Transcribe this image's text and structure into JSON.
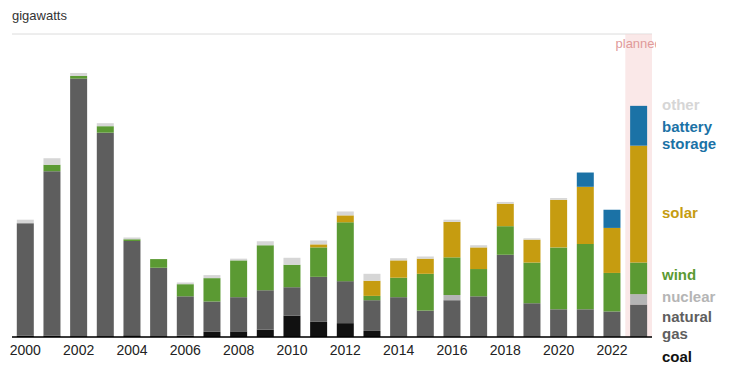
{
  "chart_data": {
    "type": "bar",
    "stacked": true,
    "y_label": "gigawatts",
    "categories": [
      "2000",
      null,
      "2002",
      null,
      "2004",
      null,
      "2006",
      null,
      "2008",
      null,
      "2010",
      null,
      "2012",
      null,
      "2014",
      null,
      "2016",
      null,
      "2018",
      null,
      "2020",
      null,
      "2022",
      null
    ],
    "series": [
      {
        "name": "coal",
        "color": "#111111",
        "values": [
          0.3,
          0.3,
          0.2,
          0.2,
          0.4,
          0.2,
          0.3,
          1.2,
          1.3,
          1.7,
          4.9,
          3.5,
          3.2,
          1.4,
          0.1,
          0,
          0,
          0,
          0,
          0,
          0,
          0,
          0,
          0
        ]
      },
      {
        "name": "natural gas",
        "color": "#5e5e5e",
        "values": [
          26,
          38,
          59.5,
          47,
          21.8,
          15.8,
          9.1,
          7.0,
          7.9,
          9.1,
          6.6,
          10.4,
          9.7,
          7.1,
          9.1,
          6.1,
          8.5,
          9.4,
          19,
          7.8,
          6.4,
          6.4,
          5.9,
          7.5
        ]
      },
      {
        "name": "nuclear",
        "color": "#b5b5b5",
        "values": [
          0,
          0,
          0,
          0,
          0,
          0,
          0,
          0,
          0,
          0,
          0,
          0,
          0,
          0,
          0,
          0,
          1.2,
          0,
          0,
          0,
          0,
          0,
          0,
          2.4
        ]
      },
      {
        "name": "wind",
        "color": "#5b9a33",
        "values": [
          0,
          1.5,
          0.6,
          1.5,
          0.4,
          2,
          2.8,
          5.4,
          8.5,
          10.4,
          5.2,
          6.8,
          13.6,
          1,
          4.5,
          8.5,
          8.7,
          6.3,
          6.6,
          9.4,
          14.3,
          15.1,
          8.9,
          7.3
        ]
      },
      {
        "name": "solar",
        "color": "#c69c10",
        "values": [
          0,
          0,
          0,
          0,
          0,
          0,
          0,
          0,
          0,
          0,
          0,
          0.7,
          1.6,
          3.5,
          4,
          3.5,
          8.2,
          5,
          5.2,
          5.3,
          11,
          13.2,
          10.4,
          27
        ]
      },
      {
        "name": "battery storage",
        "color": "#1b72a6",
        "values": [
          0,
          0,
          0,
          0,
          0,
          0,
          0,
          0,
          0,
          0,
          0,
          0,
          0,
          0,
          0,
          0,
          0,
          0,
          0,
          0,
          0,
          3.3,
          4.2,
          9.2
        ]
      },
      {
        "name": "other",
        "color": "#d6d6d6",
        "values": [
          0.8,
          1.5,
          0.7,
          0.7,
          0.4,
          0,
          0.4,
          0.7,
          0.4,
          0.9,
          1.6,
          0.9,
          0.9,
          1.6,
          0.5,
          0.5,
          0.5,
          0.5,
          0.4,
          0.3,
          0.4,
          0,
          0,
          0
        ]
      }
    ],
    "ylim": [
      0,
      70
    ],
    "yticks": [
      0,
      10,
      20,
      30,
      40,
      50,
      60,
      70
    ],
    "grid": true,
    "tick_labels": "x",
    "annotations": [
      {
        "text": "planned",
        "x": 23
      }
    ]
  }
}
